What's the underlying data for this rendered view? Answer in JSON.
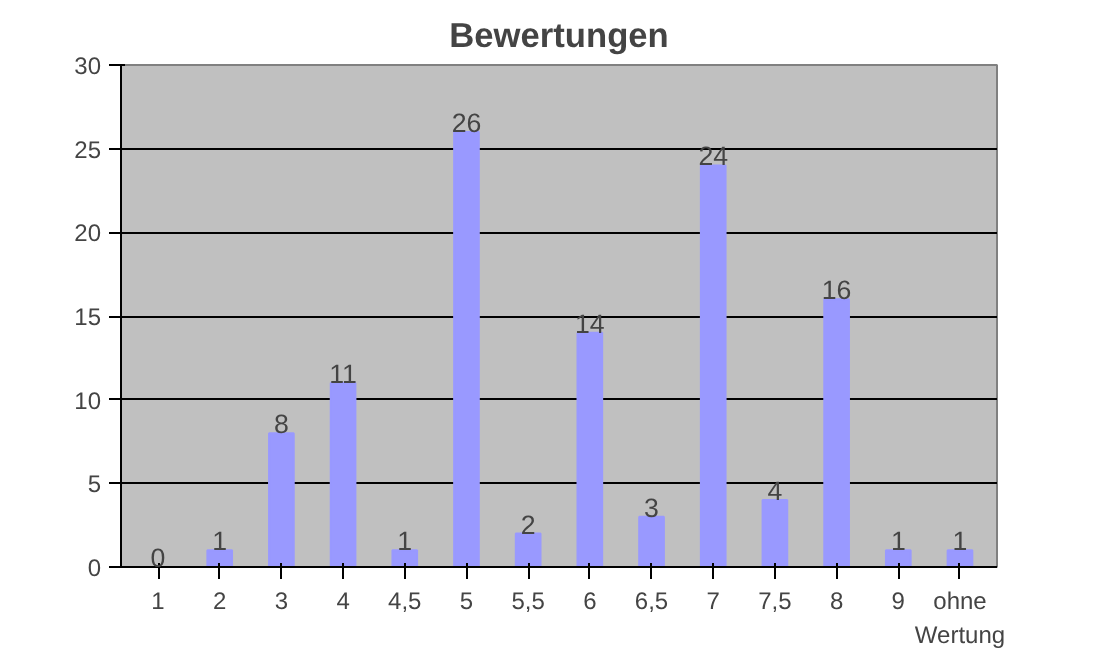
{
  "chart_data": {
    "type": "bar",
    "title": "Bewertungen",
    "categories": [
      "1",
      "2",
      "3",
      "4",
      "4,5",
      "5",
      "5,5",
      "6",
      "6,5",
      "7",
      "7,5",
      "8",
      "9",
      "ohne Wertung"
    ],
    "values": [
      0,
      1,
      8,
      11,
      1,
      26,
      2,
      14,
      3,
      24,
      4,
      16,
      1,
      1
    ],
    "color": "#9999ff",
    "ylim": [
      0,
      30
    ],
    "yticks": [
      0,
      5,
      10,
      15,
      20,
      25,
      30
    ],
    "grid": "y",
    "data_labels": true
  }
}
